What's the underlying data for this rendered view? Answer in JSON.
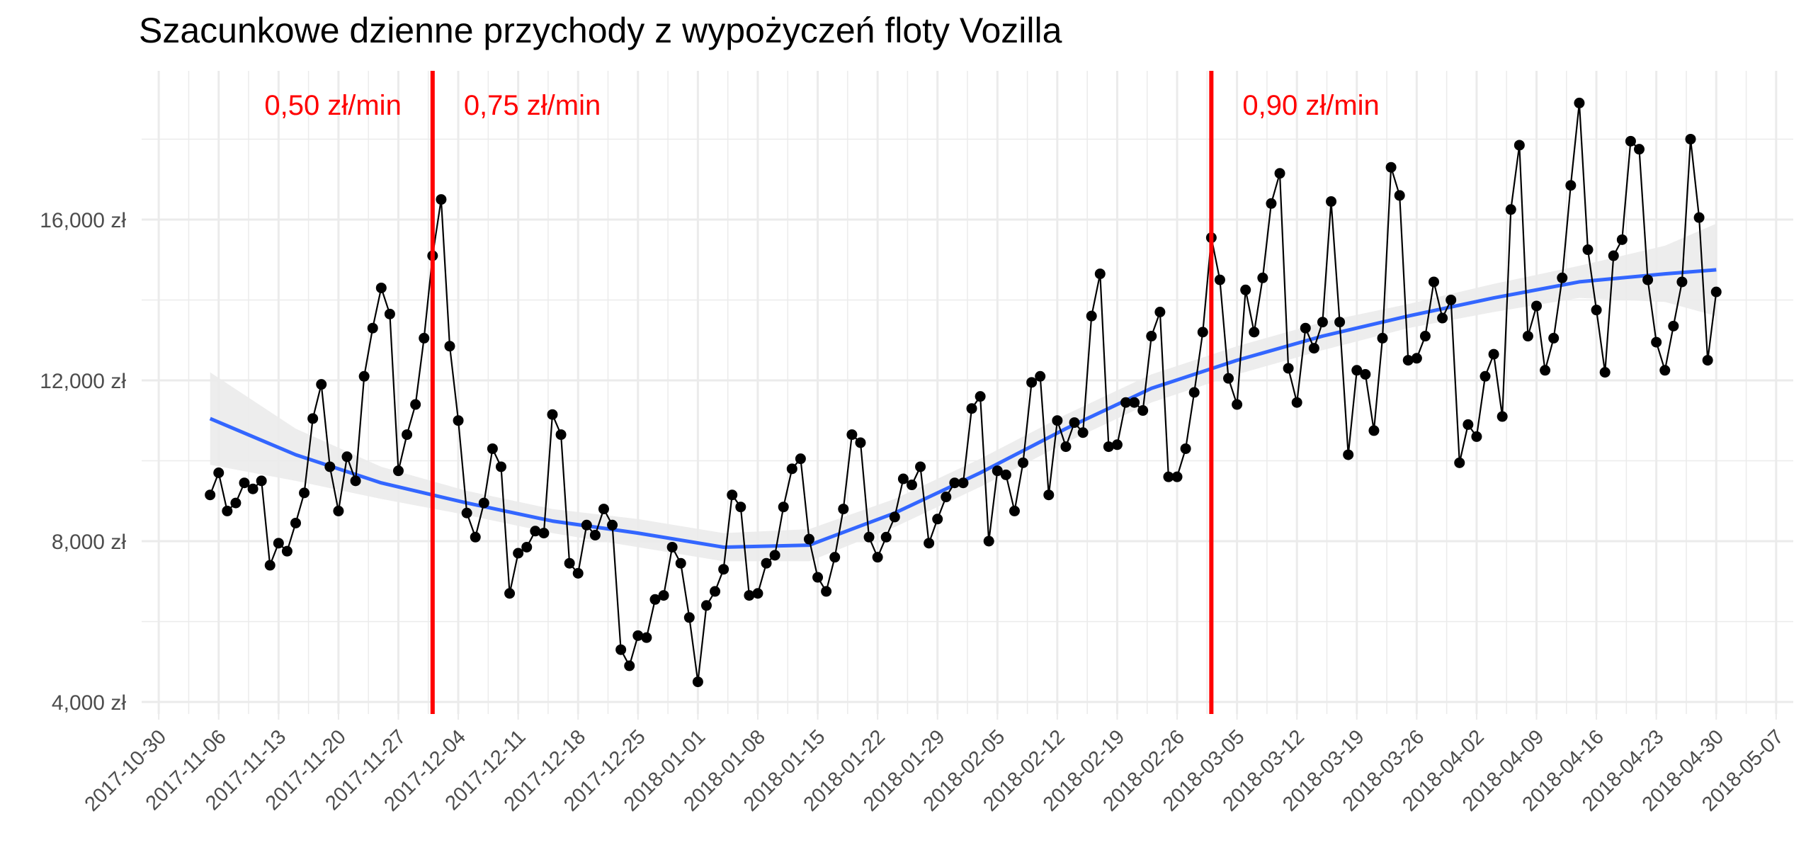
{
  "chart_data": {
    "type": "line",
    "title": "Szacunkowe dzienne przychody z wypożyczeń floty Vozilla",
    "xlabel": "",
    "ylabel": "",
    "grid": true,
    "legend": "none",
    "xlim": [
      "2017-10-28",
      "2018-05-09"
    ],
    "ylim": [
      3700,
      19700
    ],
    "y_ticks": [
      {
        "value": 4000,
        "label": "4,000 zł"
      },
      {
        "value": 8000,
        "label": "8,000 zł"
      },
      {
        "value": 12000,
        "label": "12,000 zł"
      },
      {
        "value": 16000,
        "label": "16,000 zł"
      }
    ],
    "x_ticks": [
      "2017-10-30",
      "2017-11-06",
      "2017-11-13",
      "2017-11-20",
      "2017-11-27",
      "2017-12-04",
      "2017-12-11",
      "2017-12-18",
      "2017-12-25",
      "2018-01-01",
      "2018-01-08",
      "2018-01-15",
      "2018-01-22",
      "2018-01-29",
      "2018-02-05",
      "2018-02-12",
      "2018-02-19",
      "2018-02-26",
      "2018-03-05",
      "2018-03-12",
      "2018-03-19",
      "2018-03-26",
      "2018-04-02",
      "2018-04-09",
      "2018-04-16",
      "2018-04-23",
      "2018-04-30",
      "2018-05-07"
    ],
    "colors": {
      "daily": "#000000",
      "trend": "#3366FF",
      "band": "#EBEBEB",
      "price_change": "#FF0000",
      "grid": "#EBEBEB",
      "tick_text": "#4D4D4D"
    },
    "series": [
      {
        "type": "line+points",
        "x": [
          "2017-11-05",
          "2017-11-06",
          "2017-11-07",
          "2017-11-08",
          "2017-11-09",
          "2017-11-10",
          "2017-11-11",
          "2017-11-12",
          "2017-11-13",
          "2017-11-14",
          "2017-11-15",
          "2017-11-16",
          "2017-11-17",
          "2017-11-18",
          "2017-11-19",
          "2017-11-20",
          "2017-11-21",
          "2017-11-22",
          "2017-11-23",
          "2017-11-24",
          "2017-11-25",
          "2017-11-26",
          "2017-11-27",
          "2017-11-28",
          "2017-11-29",
          "2017-11-30",
          "2017-12-01",
          "2017-12-02",
          "2017-12-03",
          "2017-12-04",
          "2017-12-05",
          "2017-12-06",
          "2017-12-07",
          "2017-12-08",
          "2017-12-09",
          "2017-12-10",
          "2017-12-11",
          "2017-12-12",
          "2017-12-13",
          "2017-12-14",
          "2017-12-15",
          "2017-12-16",
          "2017-12-17",
          "2017-12-18",
          "2017-12-19",
          "2017-12-20",
          "2017-12-21",
          "2017-12-22",
          "2017-12-23",
          "2017-12-24",
          "2017-12-25",
          "2017-12-26",
          "2017-12-27",
          "2017-12-28",
          "2017-12-29",
          "2017-12-30",
          "2017-12-31",
          "2018-01-01",
          "2018-01-02",
          "2018-01-03",
          "2018-01-04",
          "2018-01-05",
          "2018-01-06",
          "2018-01-07",
          "2018-01-08",
          "2018-01-09",
          "2018-01-10",
          "2018-01-11",
          "2018-01-12",
          "2018-01-13",
          "2018-01-14",
          "2018-01-15",
          "2018-01-16",
          "2018-01-17",
          "2018-01-18",
          "2018-01-19",
          "2018-01-20",
          "2018-01-21",
          "2018-01-22",
          "2018-01-23",
          "2018-01-24",
          "2018-01-25",
          "2018-01-26",
          "2018-01-27",
          "2018-01-28",
          "2018-01-29",
          "2018-01-30",
          "2018-01-31",
          "2018-02-01",
          "2018-02-02",
          "2018-02-03",
          "2018-02-04",
          "2018-02-05",
          "2018-02-06",
          "2018-02-07",
          "2018-02-08",
          "2018-02-09",
          "2018-02-10",
          "2018-02-11",
          "2018-02-12",
          "2018-02-13",
          "2018-02-14",
          "2018-02-15",
          "2018-02-16",
          "2018-02-17",
          "2018-02-18",
          "2018-02-19",
          "2018-02-20",
          "2018-02-21",
          "2018-02-22",
          "2018-02-23",
          "2018-02-24",
          "2018-02-25",
          "2018-02-26",
          "2018-02-27",
          "2018-02-28",
          "2018-03-01",
          "2018-03-02",
          "2018-03-03",
          "2018-03-04",
          "2018-03-05",
          "2018-03-06",
          "2018-03-07",
          "2018-03-08",
          "2018-03-09",
          "2018-03-10",
          "2018-03-11",
          "2018-03-12",
          "2018-03-13",
          "2018-03-14",
          "2018-03-15",
          "2018-03-16",
          "2018-03-17",
          "2018-03-18",
          "2018-03-19",
          "2018-03-20",
          "2018-03-21",
          "2018-03-22",
          "2018-03-23",
          "2018-03-24",
          "2018-03-25",
          "2018-03-26",
          "2018-03-27",
          "2018-03-28",
          "2018-03-29",
          "2018-03-30",
          "2018-03-31",
          "2018-04-01",
          "2018-04-02",
          "2018-04-03",
          "2018-04-04",
          "2018-04-05",
          "2018-04-06",
          "2018-04-07",
          "2018-04-08",
          "2018-04-09",
          "2018-04-10",
          "2018-04-11",
          "2018-04-12",
          "2018-04-13",
          "2018-04-14",
          "2018-04-15",
          "2018-04-16",
          "2018-04-17",
          "2018-04-18",
          "2018-04-19",
          "2018-04-20",
          "2018-04-21",
          "2018-04-22",
          "2018-04-23",
          "2018-04-24",
          "2018-04-25",
          "2018-04-26",
          "2018-04-27",
          "2018-04-28",
          "2018-04-29",
          "2018-04-30"
        ],
        "values": [
          9150,
          9700,
          8750,
          8950,
          9450,
          9300,
          9500,
          7400,
          7950,
          7750,
          8450,
          9200,
          11050,
          11900,
          9850,
          8750,
          10100,
          9500,
          12100,
          13300,
          14300,
          13650,
          9750,
          10650,
          11400,
          13050,
          15100,
          16500,
          12850,
          11000,
          8700,
          8100,
          8950,
          10300,
          9850,
          6700,
          7700,
          7850,
          8250,
          8200,
          11150,
          10650,
          7450,
          7200,
          8400,
          8150,
          8800,
          8400,
          5300,
          4900,
          5650,
          5600,
          6550,
          6650,
          7850,
          7450,
          6100,
          4500,
          6400,
          6750,
          7300,
          9150,
          8850,
          6650,
          6700,
          7450,
          7650,
          8850,
          9800,
          10050,
          8050,
          7100,
          6750,
          7600,
          8800,
          10650,
          10450,
          8100,
          7600,
          8100,
          8600,
          9550,
          9400,
          9850,
          7950,
          8550,
          9100,
          9450,
          9450,
          11300,
          11600,
          8000,
          9750,
          9650,
          8750,
          9950,
          11950,
          12100,
          9150,
          11000,
          10350,
          10950,
          10700,
          13600,
          14650,
          10350,
          10400,
          11450,
          11450,
          11250,
          13100,
          13700,
          9600,
          9600,
          10300,
          11700,
          13200,
          15550,
          14500,
          12050,
          11400,
          14250,
          13200,
          14550,
          16400,
          17150,
          12300,
          11450,
          13300,
          12800,
          13450,
          16450,
          13450,
          10150,
          12250,
          12150,
          10750,
          13050,
          17300,
          16600,
          12500,
          12550,
          13100,
          14450,
          13550,
          14000,
          9950,
          10900,
          10600,
          12100,
          12650,
          11100,
          16250,
          17850,
          13100,
          13850,
          12250,
          13050,
          14550,
          16850,
          18900,
          15250,
          13750,
          12200,
          15100,
          15500,
          17950,
          17750,
          14500,
          12950,
          12250,
          13350,
          14450,
          18000,
          16050,
          12500,
          14200
        ]
      },
      {
        "type": "smooth",
        "x": [
          "2017-11-05",
          "2017-11-15",
          "2017-11-25",
          "2017-12-05",
          "2017-12-15",
          "2017-12-25",
          "2018-01-04",
          "2018-01-14",
          "2018-01-24",
          "2018-02-03",
          "2018-02-13",
          "2018-02-23",
          "2018-03-05",
          "2018-03-15",
          "2018-03-25",
          "2018-04-04",
          "2018-04-14",
          "2018-04-24",
          "2018-04-30"
        ],
        "values": [
          11050,
          10150,
          9450,
          8950,
          8500,
          8200,
          7850,
          7900,
          8700,
          9700,
          10800,
          11800,
          12500,
          13100,
          13600,
          14050,
          14450,
          14650,
          14750
        ],
        "ci_low": [
          9900,
          9500,
          9050,
          8650,
          8200,
          7850,
          7500,
          7500,
          8350,
          9350,
          10450,
          11450,
          12150,
          12750,
          13300,
          13700,
          14050,
          13950,
          13600
        ],
        "ci_high": [
          12200,
          10800,
          9850,
          9250,
          8800,
          8550,
          8200,
          8300,
          9050,
          10050,
          11150,
          12150,
          12850,
          13450,
          13900,
          14400,
          14850,
          15350,
          15900
        ]
      }
    ],
    "vlines": [
      {
        "x": "2017-12-01",
        "label_before": "0,50 zł/min",
        "label_after": "0,75 zł/min"
      },
      {
        "x": "2018-03-02",
        "label_after": "0,90 zł/min"
      }
    ]
  }
}
